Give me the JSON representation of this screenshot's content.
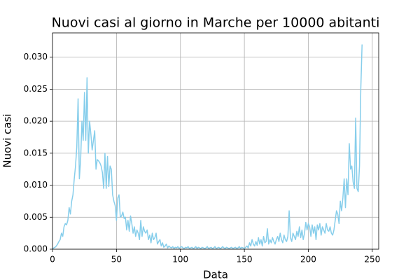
{
  "chart_data": {
    "type": "line",
    "title": "Nuovi casi al giorno in Marche per 10000 abitanti",
    "xlabel": "Data",
    "ylabel": "Nuovi casi",
    "x": [
      0,
      1,
      2,
      3,
      4,
      5,
      6,
      7,
      8,
      9,
      10,
      11,
      12,
      13,
      14,
      15,
      16,
      17,
      18,
      19,
      20,
      21,
      22,
      23,
      24,
      25,
      26,
      27,
      28,
      29,
      30,
      31,
      32,
      33,
      34,
      35,
      36,
      37,
      38,
      39,
      40,
      41,
      42,
      43,
      44,
      45,
      46,
      47,
      48,
      49,
      50,
      51,
      52,
      53,
      54,
      55,
      56,
      57,
      58,
      59,
      60,
      61,
      62,
      63,
      64,
      65,
      66,
      67,
      68,
      69,
      70,
      71,
      72,
      73,
      74,
      75,
      76,
      77,
      78,
      79,
      80,
      81,
      82,
      83,
      84,
      85,
      86,
      87,
      88,
      89,
      90,
      91,
      92,
      93,
      94,
      95,
      96,
      97,
      98,
      99,
      100,
      101,
      102,
      103,
      104,
      105,
      106,
      107,
      108,
      109,
      110,
      111,
      112,
      113,
      114,
      115,
      116,
      117,
      118,
      119,
      120,
      121,
      122,
      123,
      124,
      125,
      126,
      127,
      128,
      129,
      130,
      131,
      132,
      133,
      134,
      135,
      136,
      137,
      138,
      139,
      140,
      141,
      142,
      143,
      144,
      145,
      146,
      147,
      148,
      149,
      150,
      151,
      152,
      153,
      154,
      155,
      156,
      157,
      158,
      159,
      160,
      161,
      162,
      163,
      164,
      165,
      166,
      167,
      168,
      169,
      170,
      171,
      172,
      173,
      174,
      175,
      176,
      177,
      178,
      179,
      180,
      181,
      182,
      183,
      184,
      185,
      186,
      187,
      188,
      189,
      190,
      191,
      192,
      193,
      194,
      195,
      196,
      197,
      198,
      199,
      200,
      201,
      202,
      203,
      204,
      205,
      206,
      207,
      208,
      209,
      210,
      211,
      212,
      213,
      214,
      215,
      216,
      217,
      218,
      219,
      220,
      221,
      222,
      223,
      224,
      225,
      226,
      227,
      228,
      229,
      230,
      231,
      232,
      233,
      234,
      235,
      236,
      237,
      238,
      239,
      240,
      241,
      242
    ],
    "series": [
      {
        "color": "#87ceeb",
        "values": [
          0,
          0.0002,
          0.0003,
          0.0005,
          0.0008,
          0.0012,
          0.0015,
          0.0025,
          0.002,
          0.0035,
          0.004,
          0.0038,
          0.0045,
          0.0065,
          0.0055,
          0.0075,
          0.0085,
          0.011,
          0.013,
          0.016,
          0.0235,
          0.011,
          0.014,
          0.02,
          0.017,
          0.0245,
          0.017,
          0.0268,
          0.015,
          0.02,
          0.018,
          0.0155,
          0.017,
          0.0185,
          0.0125,
          0.014,
          0.0138,
          0.0135,
          0.013,
          0.012,
          0.0095,
          0.015,
          0.0095,
          0.0145,
          0.0098,
          0.013,
          0.0125,
          0.0085,
          0.0075,
          0.0068,
          0.0045,
          0.008,
          0.0085,
          0.005,
          0.0052,
          0.0058,
          0.0048,
          0.005,
          0.003,
          0.0045,
          0.0028,
          0.0052,
          0.004,
          0.0025,
          0.0035,
          0.002,
          0.003,
          0.0025,
          0.0015,
          0.0045,
          0.002,
          0.0035,
          0.0028,
          0.0025,
          0.003,
          0.0015,
          0.0022,
          0.001,
          0.0025,
          0.0015,
          0.0018,
          0.0025,
          0.0008,
          0.0012,
          0.0015,
          0.0005,
          0.001,
          0.0003,
          0.0005,
          0.0008,
          0.0002,
          0.0005,
          0.0003,
          0.0002,
          0.0004,
          0.0001,
          0.0003,
          0.0002,
          0.0004,
          0.0001,
          0.0003,
          0.0004,
          0.0002,
          0.0001,
          0.0003,
          0.0002,
          0.0004,
          0.0001,
          0.0002,
          0.0003,
          0.0001,
          0.0002,
          0.0004,
          0.0001,
          0.0003,
          0.0002,
          0.0001,
          0.0003,
          0.0002,
          0.0001,
          0.0002,
          0.0004,
          0.0001,
          0.0002,
          0.0003,
          0.0001,
          0.0002,
          0.0004,
          0.0001,
          0.0002,
          0.0003,
          0.0001,
          0.0002,
          0.0004,
          0.0002,
          0.0001,
          0.0003,
          0.0002,
          0.0001,
          0.0002,
          0.0003,
          0.0001,
          0.0002,
          0.0003,
          0.0001,
          0.0002,
          0.0004,
          0.0001,
          0.0003,
          0.0002,
          0.0001,
          0.0003,
          0.0005,
          0.0002,
          0.001,
          0.0005,
          0.0015,
          0.0008,
          0.0005,
          0.0012,
          0.0006,
          0.0018,
          0.0008,
          0.0015,
          0.0005,
          0.002,
          0.001,
          0.0012,
          0.0032,
          0.0008,
          0.0015,
          0.001,
          0.0018,
          0.0012,
          0.0008,
          0.0015,
          0.002,
          0.0012,
          0.0025,
          0.0015,
          0.001,
          0.0022,
          0.0015,
          0.0012,
          0.002,
          0.006,
          0.0018,
          0.0012,
          0.0025,
          0.002,
          0.0015,
          0.0028,
          0.002,
          0.0035,
          0.0018,
          0.003,
          0.0015,
          0.0025,
          0.0042,
          0.003,
          0.004,
          0.0035,
          0.002,
          0.0038,
          0.0025,
          0.0035,
          0.0015,
          0.0038,
          0.003,
          0.004,
          0.0022,
          0.0035,
          0.003,
          0.0025,
          0.004,
          0.003,
          0.0028,
          0.0035,
          0.0025,
          0.0022,
          0.003,
          0.0045,
          0.006,
          0.0055,
          0.004,
          0.0075,
          0.006,
          0.008,
          0.011,
          0.0065,
          0.011,
          0.0085,
          0.0165,
          0.0125,
          0.013,
          0.0105,
          0.0095,
          0.0205,
          0.0095,
          0.009,
          0.013,
          0.025,
          0.032
        ]
      }
    ],
    "xlim": [
      0,
      255
    ],
    "xticks": [
      0,
      50,
      100,
      150,
      200,
      250
    ],
    "ylim": [
      0,
      0.0338
    ],
    "yticks": [
      {
        "value": 0,
        "label": "0.000"
      },
      {
        "value": 0.005,
        "label": "0.005"
      },
      {
        "value": 0.01,
        "label": "0.010"
      },
      {
        "value": 0.015,
        "label": "0.015"
      },
      {
        "value": 0.02,
        "label": "0.020"
      },
      {
        "value": 0.025,
        "label": "0.025"
      },
      {
        "value": 0.03,
        "label": "0.030"
      }
    ],
    "grid": true
  }
}
